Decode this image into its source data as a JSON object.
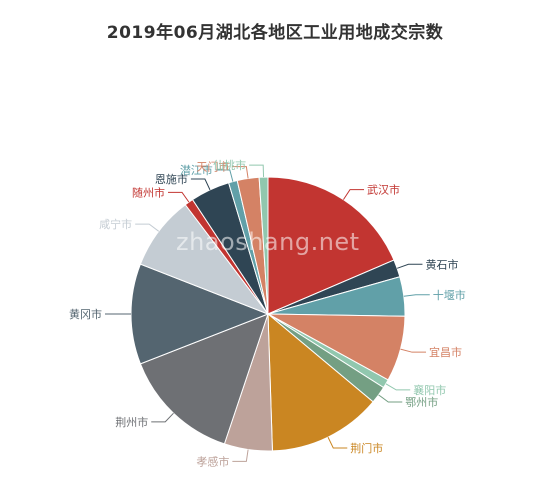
{
  "chart_data": {
    "type": "pie",
    "title": "2019年06月湖北各地区工业用地成交宗数",
    "watermark": "zhaoshang.net",
    "start_angle_deg": 0,
    "direction": "clockwise",
    "series": [
      {
        "name": "武汉市",
        "value": 36,
        "color": "#c23531"
      },
      {
        "name": "黄石市",
        "value": 4,
        "color": "#2f4554"
      },
      {
        "name": "十堰市",
        "value": 9,
        "color": "#61a0a8"
      },
      {
        "name": "宜昌市",
        "value": 15,
        "color": "#d48265"
      },
      {
        "name": "襄阳市",
        "value": 2,
        "color": "#91c7ae"
      },
      {
        "name": "鄂州市",
        "value": 4,
        "color": "#749f83"
      },
      {
        "name": "荆门市",
        "value": 26,
        "color": "#ca8622"
      },
      {
        "name": "孝感市",
        "value": 11,
        "color": "#bda29a"
      },
      {
        "name": "荆州市",
        "value": 27,
        "color": "#6e7074"
      },
      {
        "name": "黄冈市",
        "value": 23,
        "color": "#546570"
      },
      {
        "name": "咸宁市",
        "value": 17,
        "color": "#c4ccd3"
      },
      {
        "name": "随州市",
        "value": 2,
        "color": "#c23531"
      },
      {
        "name": "恩施市",
        "value": 9,
        "color": "#2f4554"
      },
      {
        "name": "潜江市",
        "value": 2,
        "color": "#61a0a8"
      },
      {
        "name": "天门市",
        "value": 5,
        "color": "#d48265"
      },
      {
        "name": "仙桃市",
        "value": 2,
        "color": "#91c7ae"
      }
    ]
  }
}
